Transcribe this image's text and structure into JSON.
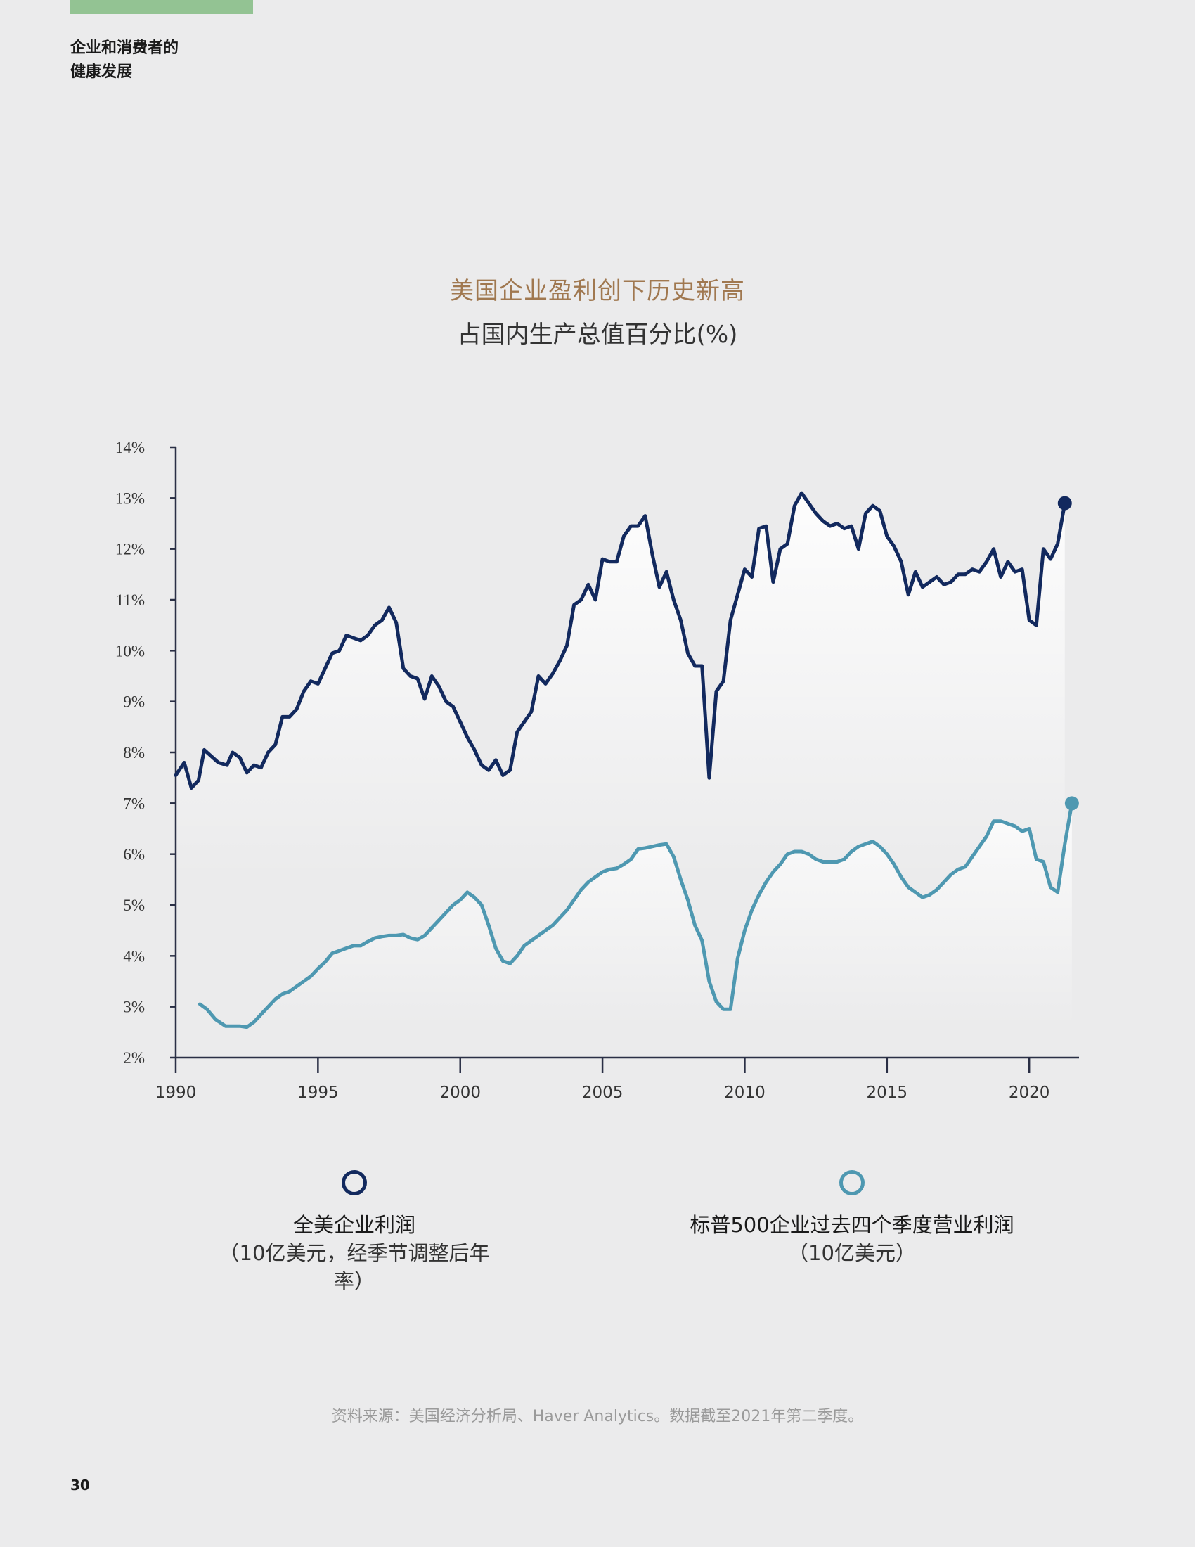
{
  "header": {
    "line1": "企业和消费者的",
    "line2": "健康发展"
  },
  "page_number": "30",
  "source": "资料来源：美国经济分析局、Haver Analytics。数据截至2021年第二季度。",
  "colors": {
    "series1": "#12295e",
    "series2": "#4e98b1",
    "title": "#a07850",
    "accent_bar": "#93c393"
  },
  "legend": [
    {
      "name": "全美企业利润",
      "note": "（10亿美元，经季节调整后年率）"
    },
    {
      "name": "标普500企业过去四个季度营业利润",
      "note": "（10亿美元）"
    }
  ],
  "chart_data": {
    "type": "line",
    "title": "美国企业盈利创下历史新高",
    "subtitle": "占国内生产总值百分比(%)",
    "xlabel": "",
    "ylabel": "",
    "xlim": [
      1990,
      2021.75
    ],
    "ylim": [
      2,
      14
    ],
    "x_ticks": [
      1990,
      1995,
      2000,
      2005,
      2010,
      2015,
      2020
    ],
    "y_ticks": [
      2,
      3,
      4,
      5,
      6,
      7,
      8,
      9,
      10,
      11,
      12,
      13,
      14
    ],
    "y_tick_labels": [
      "2%",
      "3%",
      "4%",
      "5%",
      "6%",
      "7%",
      "8%",
      "9%",
      "10%",
      "11%",
      "12%",
      "13%",
      "14%"
    ],
    "grid": false,
    "series": [
      {
        "name": "全美企业利润",
        "points": [
          [
            1990.0,
            7.55
          ],
          [
            1990.3,
            7.8
          ],
          [
            1990.55,
            7.3
          ],
          [
            1990.8,
            7.45
          ],
          [
            1991.0,
            8.05
          ],
          [
            1991.5,
            7.8
          ],
          [
            1991.8,
            7.75
          ],
          [
            1992.0,
            8.0
          ],
          [
            1992.25,
            7.9
          ],
          [
            1992.5,
            7.6
          ],
          [
            1992.75,
            7.75
          ],
          [
            1993.0,
            7.7
          ],
          [
            1993.25,
            8.0
          ],
          [
            1993.5,
            8.15
          ],
          [
            1993.75,
            8.7
          ],
          [
            1994.0,
            8.7
          ],
          [
            1994.25,
            8.85
          ],
          [
            1994.5,
            9.2
          ],
          [
            1994.75,
            9.4
          ],
          [
            1995.0,
            9.35
          ],
          [
            1995.25,
            9.65
          ],
          [
            1995.5,
            9.95
          ],
          [
            1995.75,
            10.0
          ],
          [
            1996.0,
            10.3
          ],
          [
            1996.25,
            10.25
          ],
          [
            1996.5,
            10.2
          ],
          [
            1996.75,
            10.3
          ],
          [
            1997.0,
            10.5
          ],
          [
            1997.25,
            10.6
          ],
          [
            1997.5,
            10.85
          ],
          [
            1997.75,
            10.55
          ],
          [
            1998.0,
            9.65
          ],
          [
            1998.25,
            9.5
          ],
          [
            1998.5,
            9.45
          ],
          [
            1998.75,
            9.05
          ],
          [
            1999.0,
            9.5
          ],
          [
            1999.25,
            9.3
          ],
          [
            1999.5,
            9.0
          ],
          [
            1999.75,
            8.9
          ],
          [
            2000.0,
            8.6
          ],
          [
            2000.25,
            8.3
          ],
          [
            2000.5,
            8.05
          ],
          [
            2000.75,
            7.75
          ],
          [
            2001.0,
            7.65
          ],
          [
            2001.25,
            7.85
          ],
          [
            2001.5,
            7.55
          ],
          [
            2001.75,
            7.65
          ],
          [
            2002.0,
            8.4
          ],
          [
            2002.25,
            8.6
          ],
          [
            2002.5,
            8.8
          ],
          [
            2002.75,
            9.5
          ],
          [
            2003.0,
            9.35
          ],
          [
            2003.25,
            9.55
          ],
          [
            2003.5,
            9.8
          ],
          [
            2003.75,
            10.1
          ],
          [
            2004.0,
            10.9
          ],
          [
            2004.25,
            11.0
          ],
          [
            2004.5,
            11.3
          ],
          [
            2004.75,
            11.0
          ],
          [
            2005.0,
            11.8
          ],
          [
            2005.25,
            11.75
          ],
          [
            2005.5,
            11.75
          ],
          [
            2005.75,
            12.25
          ],
          [
            2006.0,
            12.45
          ],
          [
            2006.25,
            12.45
          ],
          [
            2006.5,
            12.65
          ],
          [
            2006.75,
            11.9
          ],
          [
            2007.0,
            11.25
          ],
          [
            2007.25,
            11.55
          ],
          [
            2007.5,
            11.0
          ],
          [
            2007.75,
            10.6
          ],
          [
            2008.0,
            9.95
          ],
          [
            2008.25,
            9.7
          ],
          [
            2008.5,
            9.7
          ],
          [
            2008.75,
            7.5
          ],
          [
            2009.0,
            9.2
          ],
          [
            2009.25,
            9.4
          ],
          [
            2009.5,
            10.6
          ],
          [
            2009.75,
            11.1
          ],
          [
            2010.0,
            11.6
          ],
          [
            2010.25,
            11.45
          ],
          [
            2010.5,
            12.4
          ],
          [
            2010.75,
            12.45
          ],
          [
            2011.0,
            11.35
          ],
          [
            2011.25,
            12.0
          ],
          [
            2011.5,
            12.1
          ],
          [
            2011.75,
            12.85
          ],
          [
            2012.0,
            13.1
          ],
          [
            2012.25,
            12.9
          ],
          [
            2012.5,
            12.7
          ],
          [
            2012.75,
            12.55
          ],
          [
            2013.0,
            12.45
          ],
          [
            2013.25,
            12.5
          ],
          [
            2013.5,
            12.4
          ],
          [
            2013.75,
            12.45
          ],
          [
            2014.0,
            12.0
          ],
          [
            2014.25,
            12.7
          ],
          [
            2014.5,
            12.85
          ],
          [
            2014.75,
            12.75
          ],
          [
            2015.0,
            12.25
          ],
          [
            2015.25,
            12.05
          ],
          [
            2015.5,
            11.75
          ],
          [
            2015.75,
            11.1
          ],
          [
            2016.0,
            11.55
          ],
          [
            2016.25,
            11.25
          ],
          [
            2016.5,
            11.35
          ],
          [
            2016.75,
            11.45
          ],
          [
            2017.0,
            11.3
          ],
          [
            2017.25,
            11.35
          ],
          [
            2017.5,
            11.5
          ],
          [
            2017.75,
            11.5
          ],
          [
            2018.0,
            11.6
          ],
          [
            2018.25,
            11.55
          ],
          [
            2018.5,
            11.75
          ],
          [
            2018.75,
            12.0
          ],
          [
            2019.0,
            11.45
          ],
          [
            2019.25,
            11.75
          ],
          [
            2019.5,
            11.55
          ],
          [
            2019.75,
            11.6
          ],
          [
            2020.0,
            10.6
          ],
          [
            2020.25,
            10.5
          ],
          [
            2020.5,
            12.0
          ],
          [
            2020.75,
            11.8
          ],
          [
            2021.0,
            12.1
          ],
          [
            2021.25,
            12.9
          ]
        ]
      },
      {
        "name": "标普500企业过去四个季度营业利润",
        "points": [
          [
            1990.85,
            3.05
          ],
          [
            1991.1,
            2.95
          ],
          [
            1991.4,
            2.75
          ],
          [
            1991.75,
            2.62
          ],
          [
            1992.0,
            2.62
          ],
          [
            1992.25,
            2.62
          ],
          [
            1992.5,
            2.6
          ],
          [
            1992.75,
            2.7
          ],
          [
            1993.0,
            2.85
          ],
          [
            1993.25,
            3.0
          ],
          [
            1993.5,
            3.15
          ],
          [
            1993.75,
            3.25
          ],
          [
            1994.0,
            3.3
          ],
          [
            1994.25,
            3.4
          ],
          [
            1994.5,
            3.5
          ],
          [
            1994.75,
            3.6
          ],
          [
            1995.0,
            3.75
          ],
          [
            1995.25,
            3.88
          ],
          [
            1995.5,
            4.05
          ],
          [
            1995.75,
            4.1
          ],
          [
            1996.0,
            4.15
          ],
          [
            1996.25,
            4.2
          ],
          [
            1996.5,
            4.2
          ],
          [
            1996.75,
            4.28
          ],
          [
            1997.0,
            4.35
          ],
          [
            1997.25,
            4.38
          ],
          [
            1997.5,
            4.4
          ],
          [
            1997.75,
            4.4
          ],
          [
            1998.0,
            4.42
          ],
          [
            1998.25,
            4.35
          ],
          [
            1998.5,
            4.32
          ],
          [
            1998.75,
            4.4
          ],
          [
            1999.0,
            4.55
          ],
          [
            1999.25,
            4.7
          ],
          [
            1999.5,
            4.85
          ],
          [
            1999.75,
            5.0
          ],
          [
            2000.0,
            5.1
          ],
          [
            2000.25,
            5.25
          ],
          [
            2000.5,
            5.15
          ],
          [
            2000.75,
            5.0
          ],
          [
            2001.0,
            4.6
          ],
          [
            2001.25,
            4.15
          ],
          [
            2001.5,
            3.9
          ],
          [
            2001.75,
            3.85
          ],
          [
            2002.0,
            4.0
          ],
          [
            2002.25,
            4.2
          ],
          [
            2002.5,
            4.3
          ],
          [
            2002.75,
            4.4
          ],
          [
            2003.0,
            4.5
          ],
          [
            2003.25,
            4.6
          ],
          [
            2003.5,
            4.75
          ],
          [
            2003.75,
            4.9
          ],
          [
            2004.0,
            5.1
          ],
          [
            2004.25,
            5.3
          ],
          [
            2004.5,
            5.45
          ],
          [
            2004.75,
            5.55
          ],
          [
            2005.0,
            5.65
          ],
          [
            2005.25,
            5.7
          ],
          [
            2005.5,
            5.72
          ],
          [
            2005.75,
            5.8
          ],
          [
            2006.0,
            5.9
          ],
          [
            2006.25,
            6.1
          ],
          [
            2006.5,
            6.12
          ],
          [
            2006.75,
            6.15
          ],
          [
            2007.0,
            6.18
          ],
          [
            2007.25,
            6.2
          ],
          [
            2007.5,
            5.95
          ],
          [
            2007.75,
            5.5
          ],
          [
            2008.0,
            5.1
          ],
          [
            2008.25,
            4.6
          ],
          [
            2008.5,
            4.3
          ],
          [
            2008.75,
            3.5
          ],
          [
            2009.0,
            3.1
          ],
          [
            2009.25,
            2.95
          ],
          [
            2009.5,
            2.95
          ],
          [
            2009.75,
            3.95
          ],
          [
            2010.0,
            4.5
          ],
          [
            2010.25,
            4.9
          ],
          [
            2010.5,
            5.2
          ],
          [
            2010.75,
            5.45
          ],
          [
            2011.0,
            5.65
          ],
          [
            2011.25,
            5.8
          ],
          [
            2011.5,
            6.0
          ],
          [
            2011.75,
            6.05
          ],
          [
            2012.0,
            6.05
          ],
          [
            2012.25,
            6.0
          ],
          [
            2012.5,
            5.9
          ],
          [
            2012.75,
            5.85
          ],
          [
            2013.0,
            5.85
          ],
          [
            2013.25,
            5.85
          ],
          [
            2013.5,
            5.9
          ],
          [
            2013.75,
            6.05
          ],
          [
            2014.0,
            6.15
          ],
          [
            2014.25,
            6.2
          ],
          [
            2014.5,
            6.25
          ],
          [
            2014.75,
            6.15
          ],
          [
            2015.0,
            6.0
          ],
          [
            2015.25,
            5.8
          ],
          [
            2015.5,
            5.55
          ],
          [
            2015.75,
            5.35
          ],
          [
            2016.0,
            5.25
          ],
          [
            2016.25,
            5.15
          ],
          [
            2016.5,
            5.2
          ],
          [
            2016.75,
            5.3
          ],
          [
            2017.0,
            5.45
          ],
          [
            2017.25,
            5.6
          ],
          [
            2017.5,
            5.7
          ],
          [
            2017.75,
            5.75
          ],
          [
            2018.0,
            5.95
          ],
          [
            2018.25,
            6.15
          ],
          [
            2018.5,
            6.35
          ],
          [
            2018.75,
            6.65
          ],
          [
            2019.0,
            6.65
          ],
          [
            2019.25,
            6.6
          ],
          [
            2019.5,
            6.55
          ],
          [
            2019.75,
            6.45
          ],
          [
            2020.0,
            6.5
          ],
          [
            2020.25,
            5.9
          ],
          [
            2020.5,
            5.85
          ],
          [
            2020.75,
            5.35
          ],
          [
            2021.0,
            5.25
          ],
          [
            2021.25,
            6.2
          ],
          [
            2021.5,
            7.0
          ]
        ]
      }
    ]
  }
}
